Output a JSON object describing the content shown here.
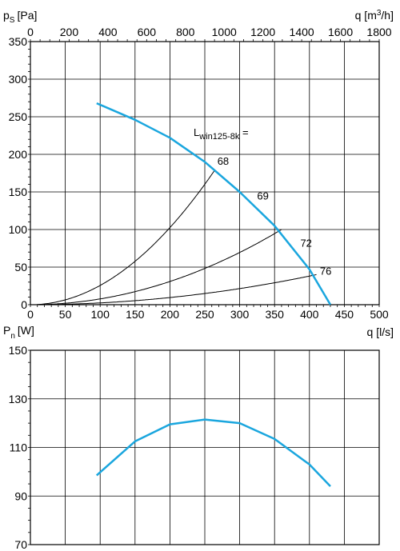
{
  "chart_data": [
    {
      "type": "line",
      "ylabel_main": "p",
      "ylabel_sub": "S",
      "ylabel_unit": "[Pa]",
      "xlabel": "q [l/s]",
      "x2label_main": "q [m",
      "x2label_sup": "3",
      "x2label_tail": "/h]",
      "xlim": [
        0,
        500
      ],
      "ylim": [
        0,
        350
      ],
      "x_ticks": [
        0,
        50,
        100,
        150,
        200,
        250,
        300,
        350,
        400,
        450,
        500
      ],
      "y_ticks": [
        0,
        50,
        100,
        150,
        200,
        250,
        300,
        350
      ],
      "x2_ticks": [
        0,
        200,
        400,
        600,
        800,
        1000,
        1200,
        1400,
        1600,
        1800
      ],
      "grid": true,
      "fan_curve": {
        "x": [
          95,
          150,
          200,
          250,
          300,
          350,
          400,
          430
        ],
        "y": [
          268,
          246,
          222,
          190,
          150,
          105,
          47,
          0
        ],
        "color": "#1aa6de"
      },
      "system_curves": [
        {
          "label": "68",
          "end": [
            265,
            180
          ]
        },
        {
          "label": "72",
          "end": [
            360,
            100
          ]
        },
        {
          "label": "76",
          "end": [
            410,
            40
          ]
        }
      ],
      "annotations": [
        {
          "text": "68",
          "x": 268,
          "y": 186
        },
        {
          "text": "69",
          "x": 325,
          "y": 140
        },
        {
          "text": "72",
          "x": 387,
          "y": 77
        },
        {
          "text": "76",
          "x": 415,
          "y": 40
        }
      ],
      "legend_title_main": "L",
      "legend_title_sub": "win125-8k",
      "legend_title_tail": " ="
    },
    {
      "type": "line",
      "ylabel_main": "P",
      "ylabel_sub": "n",
      "ylabel_unit": "[W]",
      "xlim": [
        0,
        500
      ],
      "ylim": [
        70,
        150
      ],
      "y_ticks": [
        70,
        90,
        110,
        130,
        150
      ],
      "grid": true,
      "series": [
        {
          "x": [
            95,
            150,
            200,
            250,
            300,
            350,
            400,
            430
          ],
          "y": [
            98.5,
            112.5,
            119.5,
            121.5,
            120,
            113.5,
            103,
            94
          ],
          "color": "#1aa6de"
        }
      ]
    }
  ]
}
